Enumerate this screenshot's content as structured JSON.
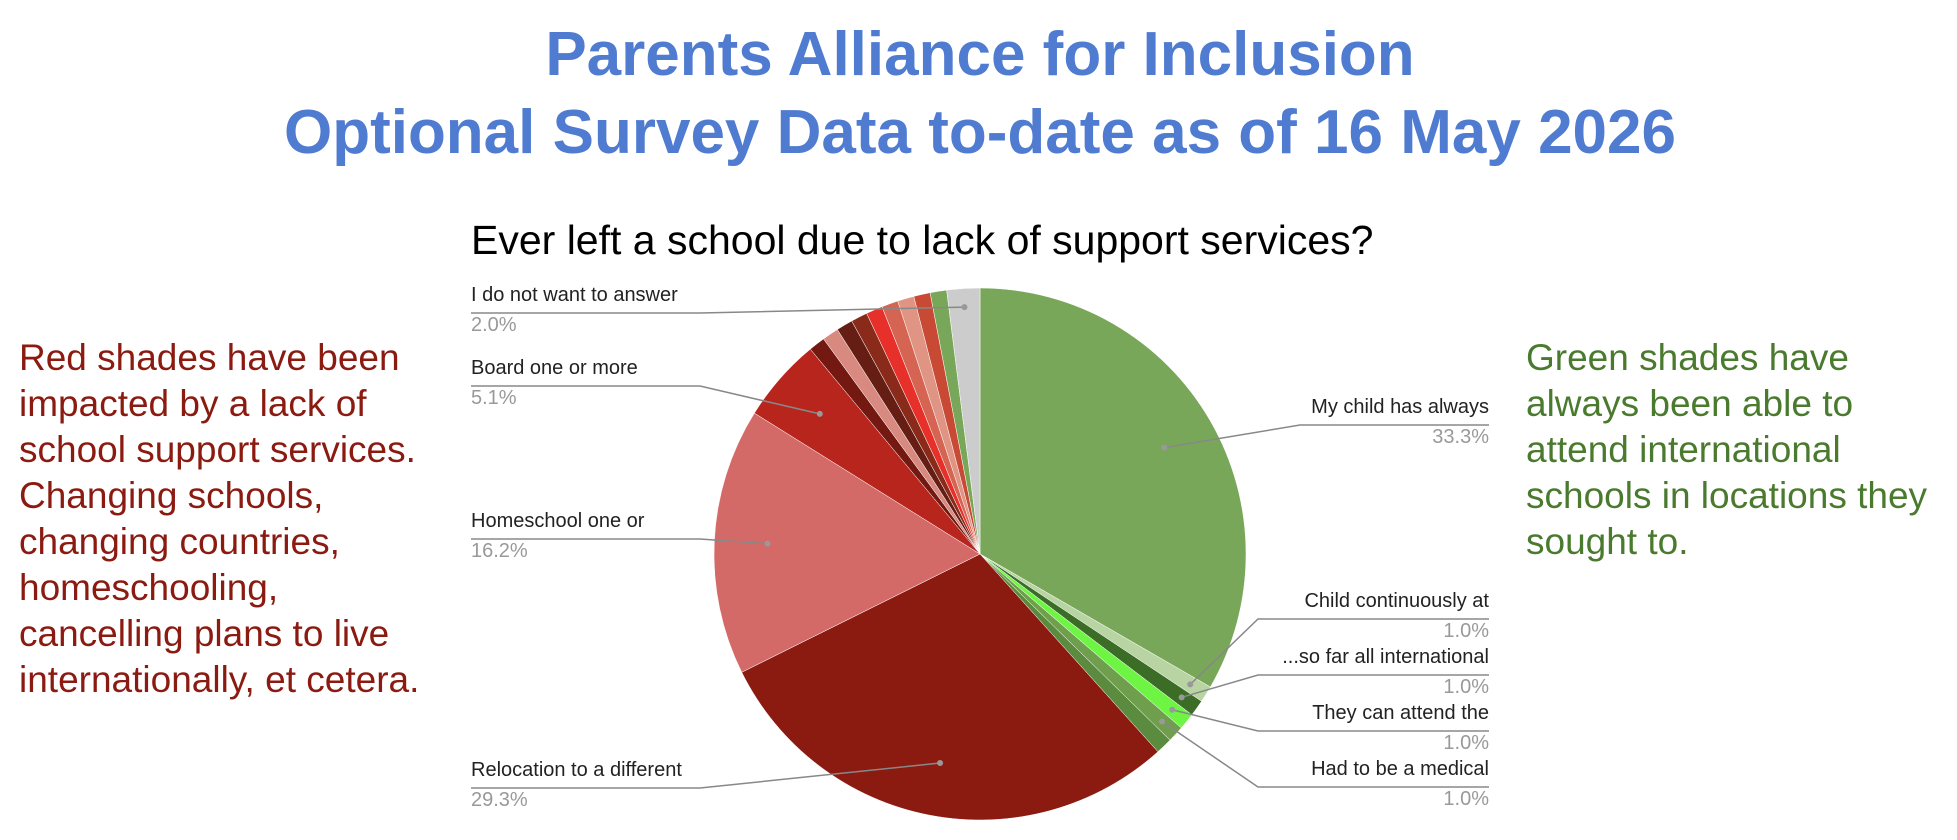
{
  "header": {
    "title_lines": [
      "Parents Alliance for Inclusion",
      "Optional Survey Data to-date as of 16 May 2026"
    ]
  },
  "left_note": {
    "lines": [
      "Red shades have been",
      "impacted by a lack of",
      "school support services.",
      "Changing schools,",
      "changing countries,",
      "homeschooling,",
      "cancelling plans to live",
      "internationally, et cetera."
    ]
  },
  "right_note": {
    "lines": [
      "Green shades have",
      "always been able to",
      "attend international",
      "schools in locations they",
      "sought to."
    ]
  },
  "chart_data": {
    "type": "pie",
    "title": "Ever left a school due to lack of support services?",
    "categories": [
      "My child has always",
      "Child continuously at",
      "...so far all international",
      "They can attend the",
      "Had to be a medical",
      null,
      "Relocation to a different",
      "Homeschool one or",
      "Board one or more",
      null,
      null,
      null,
      null,
      null,
      null,
      null,
      null,
      null,
      "I do not want to answer"
    ],
    "values": [
      33.3,
      1.0,
      1.0,
      1.0,
      1.0,
      1.0,
      29.3,
      16.2,
      5.1,
      1.0,
      1.0,
      1.0,
      1.0,
      1.0,
      1.0,
      1.0,
      1.0,
      1.0,
      2.0
    ],
    "value_labels": [
      "33.3%",
      "1.0%",
      "1.0%",
      "1.0%",
      "1.0%",
      null,
      "29.3%",
      "16.2%",
      "5.1%",
      null,
      null,
      null,
      null,
      null,
      null,
      null,
      null,
      null,
      "2.0%"
    ],
    "colors": [
      "#79a759",
      "#b8d4a2",
      "#3b6d27",
      "#6ef544",
      "#6f9f4c",
      "#5b8b3f",
      "#8b1a11",
      "#d36a68",
      "#b8251d",
      "#741911",
      "#d98a80",
      "#661e14",
      "#8a2a1a",
      "#e8302a",
      "#d66452",
      "#e09484",
      "#c84a35",
      "#79a759",
      "#cccccc"
    ]
  }
}
